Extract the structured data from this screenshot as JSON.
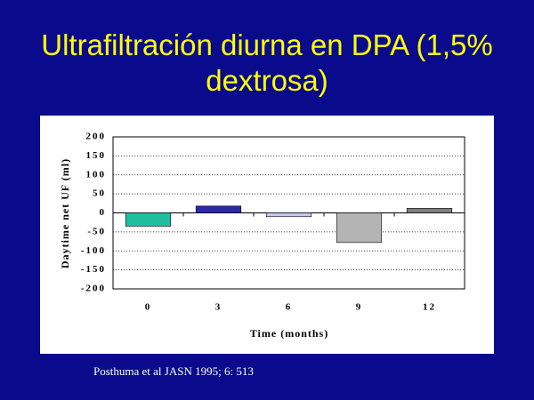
{
  "chart_data": {
    "type": "bar",
    "title_lines": [
      "Ultrafiltración diurna en DPA (1,5%",
      "dextrosa)"
    ],
    "x_label": "Time (months)",
    "y_label": "Daytime net UF (ml)",
    "categories": [
      "0",
      "3",
      "6",
      "9",
      "12"
    ],
    "values": [
      -35,
      18,
      -10,
      -78,
      12
    ],
    "colors": [
      "#20bfa0",
      "#2a2aa8",
      "#c8c8f0",
      "#b4b4b4",
      "#808080"
    ],
    "ylim": [
      -200,
      200
    ],
    "yticks": [
      -200,
      -150,
      -100,
      -50,
      0,
      50,
      100,
      150,
      200
    ],
    "grid": true,
    "source": "Posthuma et al  JASN 1995; 6: 513"
  }
}
